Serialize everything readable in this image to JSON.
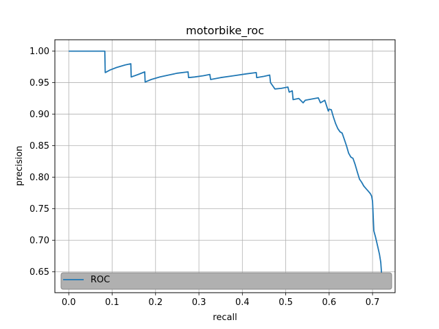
{
  "chart_data": {
    "type": "line",
    "title": "motorbike_roc",
    "xlabel": "recall",
    "ylabel": "precision",
    "xlim": [
      -0.032,
      0.752
    ],
    "ylim": [
      0.617,
      1.018
    ],
    "xticks": [
      0.0,
      0.1,
      0.2,
      0.3,
      0.4,
      0.5,
      0.6,
      0.7
    ],
    "xtick_labels": [
      "0.0",
      "0.1",
      "0.2",
      "0.3",
      "0.4",
      "0.5",
      "0.6",
      "0.7"
    ],
    "yticks": [
      0.65,
      0.7,
      0.75,
      0.8,
      0.85,
      0.9,
      0.95,
      1.0
    ],
    "ytick_labels": [
      "0.65",
      "0.70",
      "0.75",
      "0.80",
      "0.85",
      "0.90",
      "0.95",
      "1.00"
    ],
    "grid": true,
    "legend_position": "lower-left",
    "series": [
      {
        "name": "ROC",
        "color": "#1f77b4",
        "x": [
          0.0,
          0.083,
          0.084,
          0.095,
          0.11,
          0.13,
          0.143,
          0.144,
          0.16,
          0.175,
          0.176,
          0.19,
          0.21,
          0.23,
          0.25,
          0.275,
          0.276,
          0.29,
          0.31,
          0.325,
          0.327,
          0.35,
          0.38,
          0.41,
          0.432,
          0.433,
          0.45,
          0.463,
          0.465,
          0.475,
          0.49,
          0.505,
          0.508,
          0.515,
          0.517,
          0.53,
          0.54,
          0.545,
          0.56,
          0.575,
          0.58,
          0.59,
          0.598,
          0.6,
          0.605,
          0.61,
          0.615,
          0.62,
          0.625,
          0.63,
          0.635,
          0.64,
          0.645,
          0.65,
          0.655,
          0.66,
          0.665,
          0.67,
          0.675,
          0.68,
          0.685,
          0.69,
          0.695,
          0.698,
          0.7,
          0.703,
          0.707,
          0.712,
          0.716,
          0.719,
          0.722
        ],
        "y": [
          1.0,
          1.0,
          0.966,
          0.97,
          0.974,
          0.978,
          0.98,
          0.959,
          0.963,
          0.967,
          0.951,
          0.955,
          0.959,
          0.962,
          0.965,
          0.967,
          0.958,
          0.959,
          0.961,
          0.963,
          0.955,
          0.958,
          0.961,
          0.964,
          0.966,
          0.958,
          0.96,
          0.962,
          0.95,
          0.94,
          0.941,
          0.943,
          0.935,
          0.937,
          0.923,
          0.925,
          0.918,
          0.922,
          0.924,
          0.926,
          0.918,
          0.922,
          0.905,
          0.908,
          0.907,
          0.895,
          0.885,
          0.877,
          0.872,
          0.87,
          0.86,
          0.85,
          0.838,
          0.832,
          0.83,
          0.82,
          0.808,
          0.797,
          0.792,
          0.786,
          0.782,
          0.778,
          0.774,
          0.77,
          0.762,
          0.715,
          0.705,
          0.69,
          0.678,
          0.665,
          0.636
        ]
      }
    ]
  }
}
